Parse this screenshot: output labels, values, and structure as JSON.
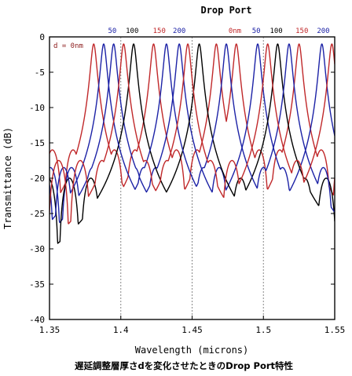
{
  "chart_data": {
    "type": "line",
    "title": "Drop Port",
    "xlabel": "Wavelength (microns)",
    "ylabel": "Transmittance (dB)",
    "caption": "遅延調整層厚さdを変化させたときのDrop Port特性",
    "xlim": [
      1.35,
      1.55
    ],
    "ylim": [
      -40,
      0
    ],
    "x_ticks": [
      "1.35",
      "1.4",
      "1.45",
      "1.5",
      "1.55"
    ],
    "y_ticks": [
      "0",
      "-5",
      "-10",
      "-15",
      "-20",
      "-25",
      "-30",
      "-35",
      "-40"
    ],
    "grid_dashed": [
      1.4,
      1.45,
      1.5
    ],
    "inset_label": "d = 0nm",
    "colors": {
      "black": "#000000",
      "red": "#c0282a",
      "blue": "#1c22a6",
      "accent": "#8b1a1a"
    },
    "top_labels": [
      {
        "text": "50",
        "x": 1.394,
        "color": "#1c22a6"
      },
      {
        "text": "100",
        "x": 1.408,
        "color": "#000000"
      },
      {
        "text": "150",
        "x": 1.427,
        "color": "#c0282a"
      },
      {
        "text": "200",
        "x": 1.441,
        "color": "#1c22a6"
      },
      {
        "text": "0nm",
        "x": 1.48,
        "color": "#c0282a"
      },
      {
        "text": "50",
        "x": 1.495,
        "color": "#1c22a6"
      },
      {
        "text": "100",
        "x": 1.509,
        "color": "#000000"
      },
      {
        "text": "150",
        "x": 1.527,
        "color": "#c0282a"
      },
      {
        "text": "200",
        "x": 1.542,
        "color": "#1c22a6"
      }
    ],
    "series": [
      {
        "color": "#c0282a",
        "peaks": [
          1.381,
          1.423,
          1.467,
          1.481,
          1.525
        ],
        "fsr": 0.0145,
        "floor": -13.0
      },
      {
        "color": "#1c22a6",
        "peaks": [
          1.395,
          1.441,
          1.496,
          1.541
        ],
        "fsr": 0.0148,
        "floor": -15.5
      },
      {
        "color": "#000000",
        "peaks": [
          1.409,
          1.455,
          1.51
        ],
        "fsr": 0.015,
        "floor": -17.0
      },
      {
        "color": "#1c22a6",
        "peaks": [
          1.388,
          1.432,
          1.474,
          1.518
        ],
        "fsr": 0.014,
        "floor": -15.5
      },
      {
        "color": "#c0282a",
        "peaks": [
          1.402,
          1.447,
          1.503,
          1.548
        ],
        "fsr": 0.0152,
        "floor": -14.5
      }
    ]
  }
}
